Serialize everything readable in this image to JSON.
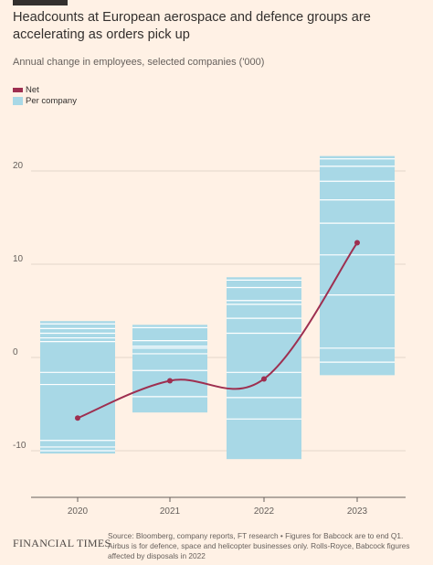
{
  "title": "Headcounts at European aerospace and defence groups are accelerating as orders pick up",
  "subtitle": "Annual change in employees, selected companies ('000)",
  "legend": {
    "net": "Net",
    "per_company": "Per company"
  },
  "footer": {
    "logo": "FINANCIAL TIMES",
    "source": "Source: Bloomberg, company reports, FT research • Figures for Babcock are to end Q1. Airbus is for defence, space and helicopter businesses only. Rolls-Royce, Babcock figures affected by disposals in 2022"
  },
  "colors": {
    "net": "#9e2f50",
    "per_company": "#a8d8e6",
    "background": "#fff1e5"
  },
  "chart_data": {
    "type": "bar",
    "categories": [
      "2020",
      "2021",
      "2022",
      "2023"
    ],
    "ylim": [
      -15,
      22
    ],
    "yticks": [
      -10,
      0,
      10,
      20
    ],
    "ytick_labels": [
      "-10",
      "0",
      "10",
      "20"
    ],
    "grid": true,
    "series": [
      {
        "name": "Per company",
        "kind": "stacked-range",
        "bars": [
          {
            "category": "2020",
            "low": -10.3,
            "high": 3.9,
            "dividers": [
              3.6,
              3.1,
              2.6,
              2.1,
              1.7,
              -1.6,
              -2.9,
              -8.9,
              -9.6,
              -10.0
            ]
          },
          {
            "category": "2021",
            "low": -5.9,
            "high": 3.5,
            "dividers": [
              3.2,
              1.8,
              1.2,
              1.0,
              0.4,
              -1.4,
              -4.2
            ]
          },
          {
            "category": "2022",
            "low": -10.9,
            "high": 8.6,
            "dividers": [
              8.3,
              7.5,
              6.1,
              5.7,
              4.2,
              2.6,
              -1.6,
              -4.3,
              -6.6
            ]
          },
          {
            "category": "2023",
            "low": -1.9,
            "high": 21.6,
            "dividers": [
              21.3,
              20.5,
              18.9,
              16.9,
              14.4,
              11.0,
              6.7,
              1.0,
              -0.5
            ]
          }
        ]
      },
      {
        "name": "Net",
        "kind": "line",
        "values": [
          -6.5,
          -2.5,
          -2.3,
          12.3
        ]
      }
    ]
  }
}
